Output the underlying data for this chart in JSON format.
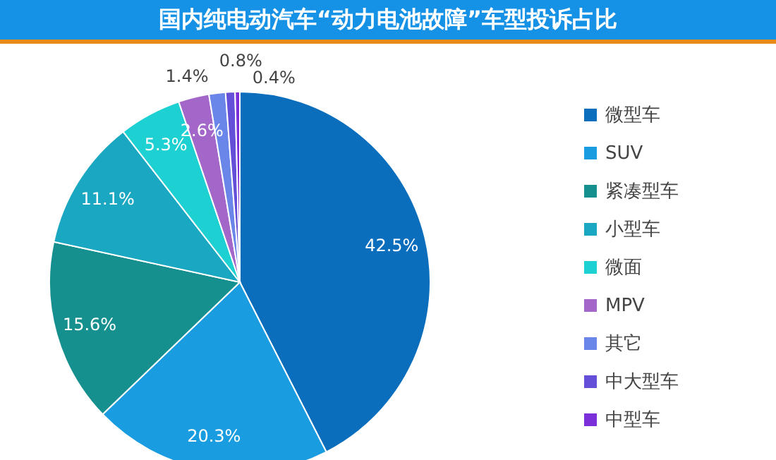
{
  "chart_data": {
    "type": "pie",
    "title": "国内纯电动汽车“动力电池故障”车型投诉占比",
    "categories": [
      "微型车",
      "SUV",
      "紧凑型车",
      "小型车",
      "微面",
      "MPV",
      "其它",
      "中大型车",
      "中型车"
    ],
    "values": [
      42.5,
      20.3,
      15.6,
      11.1,
      5.3,
      2.6,
      1.4,
      0.8,
      0.4
    ],
    "value_labels": [
      "42.5%",
      "20.3%",
      "15.6%",
      "11.1%",
      "5.3%",
      "2.6%",
      "1.4%",
      "0.8%",
      "0.4%"
    ],
    "colors": [
      "#0a6ebd",
      "#1a9de0",
      "#16908f",
      "#1aa7c1",
      "#1dd0d2",
      "#a366c9",
      "#6a86e8",
      "#6450d8",
      "#7a2fd8"
    ],
    "legend": "right"
  }
}
